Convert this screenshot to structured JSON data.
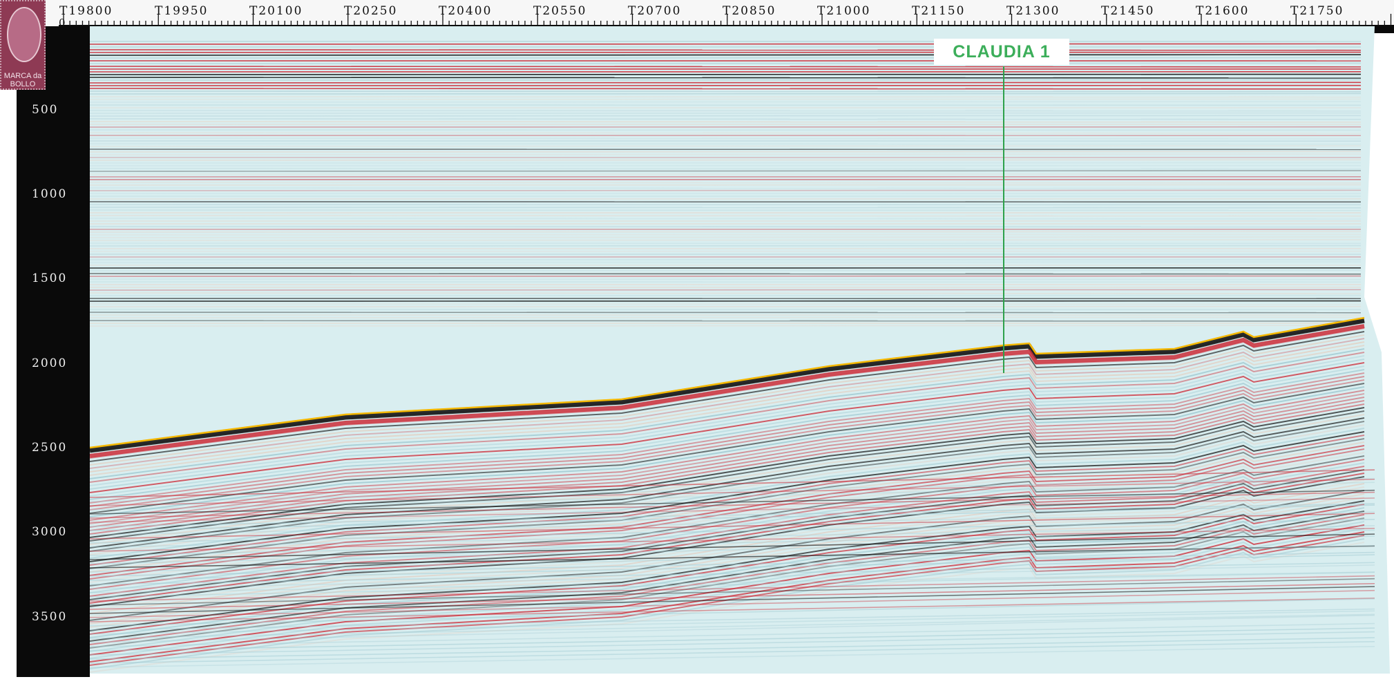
{
  "header": {
    "shotpoint_labels": [
      "T19800",
      "T19950",
      "T20100",
      "T20250",
      "T20400",
      "T20550",
      "T20700",
      "T20850",
      "T21000",
      "T21150",
      "T21300",
      "T21450",
      "T21600",
      "T21750"
    ],
    "zero_label": "0"
  },
  "time_axis": {
    "labels": [
      "500",
      "1000",
      "1500",
      "2000",
      "2500",
      "3000",
      "3500"
    ]
  },
  "well": {
    "name": "CLAUDIA 1",
    "color": "#3cae5a"
  },
  "stamp": {
    "text": "MARCA da BOLLO",
    "color": "#8e3a54"
  },
  "colors": {
    "background": "#d9eef0",
    "reflector_red": "#cc2e3a",
    "reflector_black": "#151515",
    "horizon": "#f5b800"
  }
}
